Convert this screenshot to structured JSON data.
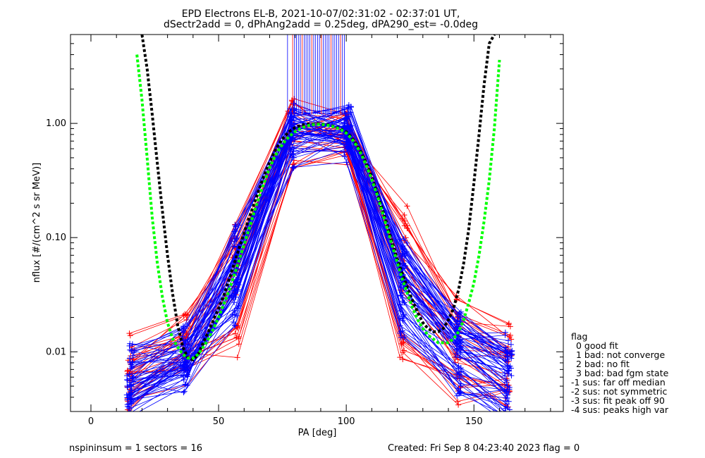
{
  "chart_data": {
    "type": "line",
    "title_line1": "EPD Electrons EL-B, 2021-10-07/02:31:02 - 02:37:01 UT,",
    "title_line2": "dSectr2add = 0, dPhAng2add = 0.25deg, dPA290_est=  -0.0deg",
    "xlabel": "PA [deg]",
    "ylabel": "nflux [#/(cm^2 s sr MeV)]",
    "xlim": [
      -8,
      185
    ],
    "ylim": [
      0.003,
      6.0
    ],
    "yscale": "log",
    "x_ticks": [
      0,
      50,
      100,
      150
    ],
    "x_tick_labels": [
      "0",
      "50",
      "100",
      "150"
    ],
    "y_ticks": [
      0.01,
      0.1,
      1.0
    ],
    "y_tick_labels": [
      "0.01",
      "0.10",
      "1.00"
    ],
    "grid": false,
    "colors": {
      "up": "#0000ff",
      "down": "#ff0000",
      "fit_black": "#000000",
      "fit_green": "#00ff00"
    },
    "series": [
      {
        "values": [
          [
            15,
            0.0055
          ],
          [
            37,
            0.009
          ],
          [
            57,
            0.03
          ],
          [
            79,
            0.95
          ],
          [
            100,
            0.98
          ],
          [
            122,
            0.045
          ],
          [
            144,
            0.013
          ],
          [
            163,
            0.006
          ]
        ]
      },
      {
        "values": [
          [
            15,
            0.004
          ],
          [
            37,
            0.0075
          ],
          [
            57,
            0.06
          ],
          [
            79,
            0.7
          ],
          [
            100,
            0.75
          ],
          [
            122,
            0.03
          ],
          [
            144,
            0.009
          ],
          [
            163,
            0.004
          ]
        ]
      },
      {
        "values": [
          [
            16,
            0.007
          ],
          [
            36,
            0.011
          ],
          [
            57,
            0.09
          ],
          [
            79,
            1.05
          ],
          [
            101,
            1.1
          ],
          [
            122,
            0.08
          ],
          [
            144,
            0.02
          ],
          [
            164,
            0.008
          ]
        ]
      },
      {
        "values": [
          [
            15,
            0.0045
          ],
          [
            37,
            0.0065
          ],
          [
            56,
            0.025
          ],
          [
            79,
            0.6
          ],
          [
            100,
            0.62
          ],
          [
            122,
            0.02
          ],
          [
            144,
            0.006
          ],
          [
            163,
            0.0035
          ]
        ]
      },
      {
        "values": [
          [
            16,
            0.009
          ],
          [
            37,
            0.012
          ],
          [
            57,
            0.05
          ],
          [
            79,
            0.85
          ],
          [
            100,
            0.9
          ],
          [
            123,
            0.06
          ],
          [
            144,
            0.015
          ],
          [
            163,
            0.011
          ]
        ]
      }
    ],
    "series_red": [
      {
        "values": [
          [
            15,
            0.0065
          ],
          [
            37,
            0.01
          ],
          [
            57,
            0.045
          ],
          [
            78,
            0.9
          ],
          [
            100,
            0.85
          ],
          [
            122,
            0.05
          ],
          [
            143,
            0.012
          ],
          [
            163,
            0.007
          ]
        ]
      },
      {
        "values": [
          [
            16,
            0.011
          ],
          [
            37,
            0.016
          ],
          [
            56,
            0.1
          ],
          [
            79,
            1.1
          ],
          [
            100,
            0.9
          ],
          [
            123,
            0.14
          ],
          [
            144,
            0.021
          ],
          [
            164,
            0.012
          ]
        ]
      },
      {
        "values": [
          [
            15,
            0.0045
          ],
          [
            37,
            0.007
          ],
          [
            57,
            0.012
          ],
          [
            79,
            0.55
          ],
          [
            100,
            0.6
          ],
          [
            122,
            0.012
          ],
          [
            144,
            0.005
          ],
          [
            163,
            0.0045
          ]
        ]
      }
    ],
    "fit_black": {
      "x": [
        20,
        22,
        24,
        26,
        28,
        30,
        32,
        34,
        36,
        38,
        40,
        42,
        44,
        46,
        48,
        50,
        52,
        54,
        56,
        58,
        60,
        62,
        64,
        66,
        68,
        70,
        72,
        74,
        76,
        78,
        80,
        82,
        84,
        86,
        88,
        90,
        92,
        94,
        96,
        98,
        100,
        102,
        104,
        106,
        108,
        110,
        112,
        114,
        116,
        118,
        120,
        122,
        124,
        126,
        128,
        130,
        132,
        134,
        136,
        138,
        140,
        142,
        144,
        146,
        148,
        150,
        152,
        154,
        156,
        158
      ],
      "y": [
        6.0,
        3.0,
        1.2,
        0.45,
        0.17,
        0.07,
        0.032,
        0.017,
        0.011,
        0.0088,
        0.0085,
        0.0095,
        0.012,
        0.015,
        0.019,
        0.024,
        0.031,
        0.042,
        0.058,
        0.08,
        0.11,
        0.15,
        0.2,
        0.27,
        0.36,
        0.46,
        0.57,
        0.68,
        0.78,
        0.86,
        0.92,
        0.96,
        0.98,
        0.99,
        0.99,
        0.99,
        0.98,
        0.96,
        0.93,
        0.89,
        0.84,
        0.76,
        0.66,
        0.55,
        0.44,
        0.34,
        0.25,
        0.18,
        0.13,
        0.09,
        0.065,
        0.048,
        0.036,
        0.028,
        0.022,
        0.018,
        0.016,
        0.015,
        0.015,
        0.016,
        0.019,
        0.024,
        0.035,
        0.06,
        0.12,
        0.3,
        0.8,
        2.2,
        5.0,
        6.0
      ]
    },
    "fit_green": {
      "x": [
        18,
        20,
        22,
        24,
        26,
        28,
        30,
        32,
        34,
        36,
        38,
        40,
        42,
        44,
        46,
        48,
        50,
        52,
        54,
        56,
        58,
        60,
        62,
        64,
        66,
        68,
        70,
        72,
        74,
        76,
        78,
        80,
        82,
        84,
        86,
        88,
        90,
        92,
        94,
        96,
        98,
        100,
        102,
        104,
        106,
        108,
        110,
        112,
        114,
        116,
        118,
        120,
        122,
        124,
        126,
        128,
        130,
        132,
        134,
        136,
        138,
        140,
        142,
        144,
        146,
        148,
        150,
        152,
        154,
        156,
        158,
        160
      ],
      "y": [
        4.0,
        1.6,
        0.5,
        0.15,
        0.06,
        0.03,
        0.018,
        0.013,
        0.011,
        0.0095,
        0.0088,
        0.0088,
        0.0095,
        0.011,
        0.013,
        0.016,
        0.02,
        0.026,
        0.034,
        0.046,
        0.063,
        0.087,
        0.12,
        0.17,
        0.23,
        0.31,
        0.41,
        0.51,
        0.61,
        0.7,
        0.78,
        0.85,
        0.9,
        0.94,
        0.97,
        0.98,
        0.98,
        0.97,
        0.95,
        0.92,
        0.88,
        0.82,
        0.74,
        0.64,
        0.53,
        0.42,
        0.32,
        0.24,
        0.17,
        0.12,
        0.085,
        0.06,
        0.043,
        0.032,
        0.024,
        0.019,
        0.016,
        0.014,
        0.013,
        0.012,
        0.012,
        0.012,
        0.013,
        0.015,
        0.019,
        0.027,
        0.04,
        0.07,
        0.14,
        0.32,
        0.9,
        3.6
      ]
    }
  },
  "legend": {
    "title": "flag",
    "items": [
      "0 good fit",
      "1 bad: not converge",
      "2 bad: no fit",
      "3 bad: bad fgm state",
      "-1 sus: far off median",
      "-2 sus: not symmetric",
      "-3 sus: fit peak off 90",
      "-4 sus: peaks high var"
    ]
  },
  "footer": {
    "left": "nspininsum =  1  sectors = 16",
    "right": "Created: Fri Sep  8 04:23:40 2023   flag = 0"
  }
}
